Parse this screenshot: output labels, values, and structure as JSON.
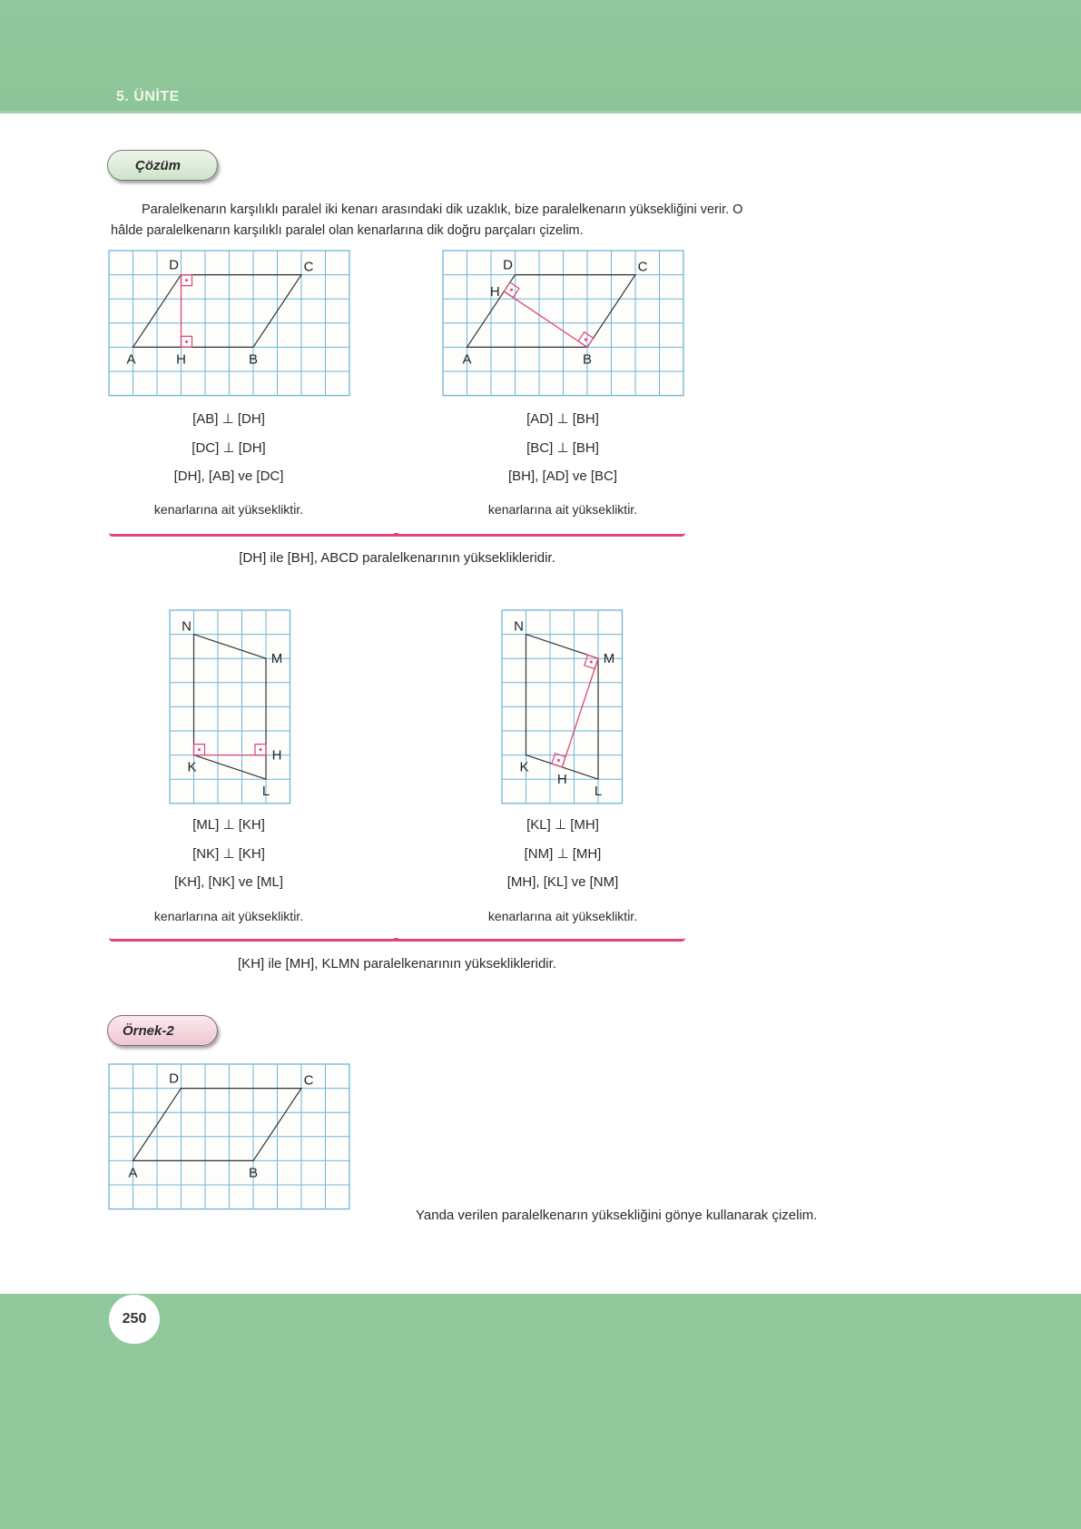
{
  "header": {
    "unit": "5. ÜNİTE",
    "color": "#8fc69a"
  },
  "solution_badge": "Çözüm",
  "intro": [
    "Paralelkenarın karşılıklı paralel iki kenarı arasındaki dik uzaklık, bize paralelkenarın yüksekliğini verir. O",
    "hâlde paralelkenarın karşılıklı paralel olan kenarlarına dik doğru parçaları çizelim."
  ],
  "colors": {
    "grid": "#6fb6d8",
    "edge": "#333333",
    "altitude": "#e0457a"
  },
  "figures": [
    {
      "id": "abcd-altitude-dh",
      "cols": 10,
      "rows": 6,
      "vertices": {
        "A": [
          1,
          4,
          "bl"
        ],
        "B": [
          6,
          4,
          "b"
        ],
        "C": [
          8,
          1,
          "tr"
        ],
        "D": [
          3,
          1,
          "t"
        ],
        "H": [
          3,
          4,
          "b"
        ]
      },
      "polygon": [
        "A",
        "B",
        "C",
        "D"
      ],
      "altitude": [
        "D",
        "H"
      ]
    },
    {
      "id": "abcd-altitude-bh",
      "cols": 10,
      "rows": 6,
      "vertices": {
        "A": [
          1,
          4,
          "b"
        ],
        "B": [
          6,
          4,
          "b"
        ],
        "C": [
          8,
          1,
          "tr"
        ],
        "D": [
          3,
          1,
          "t"
        ],
        "H": [
          2.54,
          1.69,
          "l"
        ]
      },
      "polygon": [
        "A",
        "B",
        "C",
        "D"
      ],
      "altitude": [
        "B",
        "H"
      ]
    },
    {
      "id": "klmn-altitude-kh",
      "cols": 5,
      "rows": 8,
      "vertices": {
        "N": [
          1,
          1,
          "tl"
        ],
        "M": [
          4,
          2,
          "r"
        ],
        "K": [
          1,
          6,
          "bl"
        ],
        "L": [
          4,
          7,
          "b"
        ],
        "H": [
          4,
          6,
          "r"
        ]
      },
      "polygon": [
        "K",
        "L",
        "M",
        "N"
      ],
      "altitude": [
        "K",
        "H"
      ]
    },
    {
      "id": "klmn-altitude-mh",
      "cols": 5,
      "rows": 8,
      "vertices": {
        "N": [
          1,
          1,
          "tl"
        ],
        "M": [
          4,
          2,
          "r"
        ],
        "K": [
          1,
          6,
          "bl"
        ],
        "L": [
          4,
          7,
          "b"
        ],
        "H": [
          2.5,
          6.5,
          "b"
        ]
      },
      "polygon": [
        "K",
        "L",
        "M",
        "N"
      ],
      "altitude": [
        "M",
        "H"
      ]
    },
    {
      "id": "example-abcd",
      "cols": 10,
      "rows": 6,
      "vertices": {
        "A": [
          1,
          4,
          "b"
        ],
        "B": [
          6,
          4,
          "b"
        ],
        "C": [
          8,
          1,
          "tr"
        ],
        "D": [
          3,
          1,
          "t"
        ]
      },
      "polygon": [
        "A",
        "B",
        "C",
        "D"
      ],
      "altitude": null
    }
  ],
  "notes": [
    [
      "[AB] ⊥ [DH]",
      "[DC] ⊥ [DH]",
      "[DH], [AB] ve [DC]",
      "kenarlarına ait yükseklikti̇r."
    ],
    [
      "[AD] ⊥ [BH]",
      "[BC] ⊥ [BH]",
      "[BH], [AD] ve [BC]",
      "kenarlarına ait yükseklikti̇r."
    ],
    [
      "[ML] ⊥ [KH]",
      "[NK] ⊥ [KH]",
      "[KH], [NK] ve [ML]",
      "kenarlarına ait yükseklikti̇r."
    ],
    [
      "[KL] ⊥ [MH]",
      "[NM] ⊥ [MH]",
      "[MH], [KL] ve [NM]",
      "kenarlarına ait yükseklikti̇r."
    ]
  ],
  "summaries": [
    "[DH] ile [BH], ABCD paralelkenarının yükseklikleridir.",
    "[KH] ile [MH], KLMN paralelkenarının yükseklikleridir."
  ],
  "example_badge": "Örnek-2",
  "example_task": "Yanda verilen paralelkenarın yüksekliğini gönye kullanarak çizelim.",
  "page_number": "250"
}
